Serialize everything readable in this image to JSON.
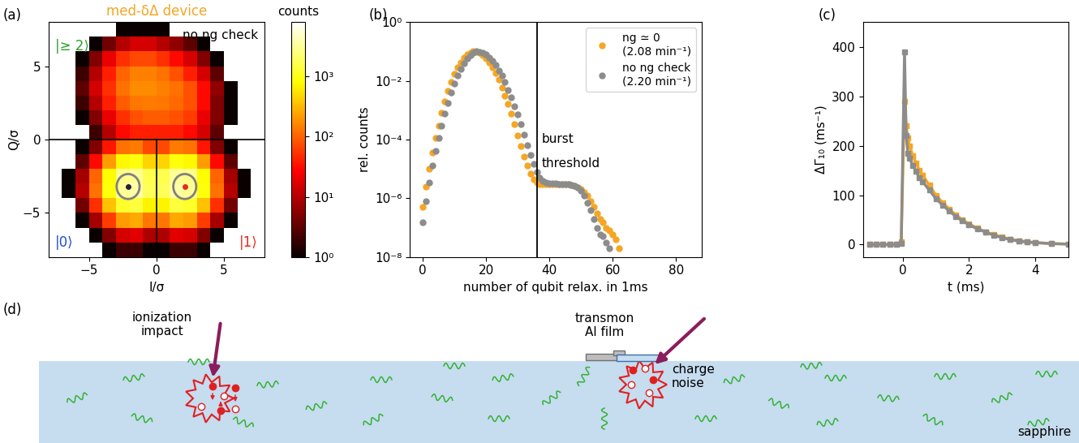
{
  "chart_data": [
    {
      "type": "heatmap",
      "panel_label": "(a)",
      "title": "med-δΔ device",
      "annotation": "no ng check",
      "x_label": "I/σ",
      "y_label": "Q/σ",
      "xlim": [
        -8,
        8
      ],
      "ylim": [
        -8,
        8
      ],
      "xticks": [
        {
          "value": -5,
          "label": "−5"
        },
        0,
        5
      ],
      "yticks": [
        {
          "value": -5,
          "label": "−5"
        },
        0,
        5
      ],
      "x_bins": [
        -8,
        -7,
        -6,
        -5,
        -4,
        -3,
        -2,
        -1,
        0,
        1,
        2,
        3,
        4,
        5,
        6,
        7,
        8
      ],
      "y_bins": [
        -8,
        -7,
        -6,
        -5,
        -4,
        -3,
        -2,
        -1,
        0,
        1,
        2,
        3,
        4,
        5,
        6,
        7,
        8
      ],
      "cells": [
        [
          0,
          0,
          0,
          0,
          1,
          2,
          2,
          1,
          1,
          2,
          2,
          1,
          0,
          0,
          0,
          0
        ],
        [
          0,
          0,
          0,
          1,
          5,
          15,
          18,
          9,
          9,
          18,
          15,
          5,
          1,
          0,
          0,
          0
        ],
        [
          0,
          0,
          1,
          8,
          60,
          210,
          250,
          130,
          130,
          250,
          210,
          60,
          8,
          1,
          0,
          0
        ],
        [
          0,
          0,
          4,
          50,
          360,
          1200,
          1400,
          700,
          700,
          1400,
          1200,
          360,
          50,
          4,
          0,
          0
        ],
        [
          0,
          1,
          10,
          120,
          900,
          3000,
          3500,
          1800,
          1800,
          3500,
          3000,
          900,
          120,
          10,
          1,
          0
        ],
        [
          0,
          1,
          8,
          100,
          800,
          2700,
          3100,
          1600,
          1600,
          3100,
          2700,
          800,
          100,
          8,
          1,
          0
        ],
        [
          0,
          0,
          3,
          30,
          220,
          750,
          880,
          450,
          450,
          880,
          750,
          220,
          30,
          3,
          0,
          0
        ],
        [
          0,
          0,
          1,
          5,
          35,
          120,
          140,
          70,
          70,
          140,
          120,
          35,
          5,
          1,
          0,
          0
        ],
        [
          0,
          0,
          0,
          2,
          10,
          30,
          40,
          40,
          40,
          40,
          30,
          15,
          3,
          0,
          0,
          0
        ],
        [
          0,
          0,
          1,
          5,
          20,
          50,
          80,
          90,
          90,
          80,
          60,
          20,
          5,
          1,
          0,
          0
        ],
        [
          0,
          0,
          2,
          10,
          40,
          90,
          130,
          140,
          130,
          110,
          80,
          30,
          5,
          1,
          0,
          0
        ],
        [
          0,
          0,
          3,
          15,
          50,
          120,
          170,
          170,
          150,
          120,
          80,
          30,
          6,
          1,
          0,
          0
        ],
        [
          0,
          0,
          2,
          10,
          40,
          100,
          150,
          150,
          120,
          80,
          40,
          15,
          3,
          0,
          0,
          0
        ],
        [
          0,
          0,
          1,
          5,
          20,
          50,
          70,
          70,
          50,
          30,
          15,
          5,
          1,
          0,
          0,
          0
        ],
        [
          0,
          0,
          0,
          1,
          4,
          10,
          15,
          15,
          10,
          6,
          3,
          1,
          0,
          0,
          0,
          0
        ],
        [
          0,
          0,
          0,
          0,
          0,
          1,
          1,
          1,
          1,
          0,
          0,
          0,
          0,
          0,
          0,
          0
        ]
      ],
      "colorbar": {
        "label": "counts",
        "log": true,
        "range": [
          1,
          8000
        ],
        "ticks": [
          {
            "value": 1,
            "label": "10⁰"
          },
          {
            "value": 10,
            "label": "10¹"
          },
          {
            "value": 100,
            "label": "10²"
          },
          {
            "value": 1000,
            "label": "10³"
          }
        ]
      },
      "thresholds": {
        "I": 0,
        "Q": 0
      },
      "state_labels": [
        {
          "text": "|≥ 2⟩",
          "color": "#2ca02c"
        },
        {
          "text": "|0⟩",
          "color": "#1f4fd1"
        },
        {
          "text": "|1⟩",
          "color": "#e8291c"
        }
      ],
      "state_centers": [
        {
          "x": -2.1,
          "y": -3.2,
          "color": "#202040"
        },
        {
          "x": 2.1,
          "y": -3.2,
          "color": "#e8291c"
        }
      ],
      "circle_radius": 0.85
    },
    {
      "type": "scatter",
      "panel_label": "(b)",
      "x_label": "number of qubit relax. in 1ms",
      "y_label": "rel. counts",
      "log": "y",
      "xlim": [
        -4,
        88
      ],
      "xticks": [
        0,
        20,
        40,
        60,
        80
      ],
      "ylim": [
        1e-08,
        1
      ],
      "yticks": [
        {
          "value": 1e-08,
          "label": "10⁻⁸"
        },
        {
          "value": 1e-06,
          "label": "10⁻⁶"
        },
        {
          "value": 0.0001,
          "label": "10⁻⁴"
        },
        {
          "value": 0.01,
          "label": "10⁻²"
        },
        {
          "value": 1,
          "label": "10⁰"
        }
      ],
      "legend": "upper right",
      "threshold": {
        "x": 36,
        "label": "burst\nthreshold"
      },
      "series": [
        {
          "name": "ng ≃ 0\n(2.08 min⁻¹)",
          "color": "#f5a623",
          "marker": "o",
          "x": [
            0,
            1,
            2,
            3,
            4,
            5,
            6,
            7,
            8,
            9,
            10,
            11,
            12,
            13,
            14,
            15,
            16,
            17,
            18,
            19,
            20,
            21,
            22,
            23,
            24,
            25,
            26,
            27,
            28,
            29,
            30,
            31,
            32,
            33,
            34,
            35,
            36,
            37,
            38,
            39,
            40,
            41,
            42,
            43,
            44,
            45,
            46,
            47,
            48,
            49,
            50,
            51,
            52,
            53,
            54,
            55,
            56,
            57,
            58,
            59,
            60,
            61,
            62
          ],
          "values": [
            5e-07,
            2.5e-06,
            1e-05,
            3.5e-05,
            0.00011,
            0.0003,
            0.0008,
            0.002,
            0.0045,
            0.009,
            0.017,
            0.028,
            0.043,
            0.06,
            0.078,
            0.09,
            0.1,
            0.098,
            0.09,
            0.075,
            0.058,
            0.042,
            0.028,
            0.018,
            0.011,
            0.006,
            0.0032,
            0.0016,
            0.00075,
            0.00033,
            0.00014,
            6e-05,
            2.6e-05,
            1.3e-05,
            7e-06,
            4.5e-06,
            3.5e-06,
            3e-06,
            3e-06,
            3e-06,
            3e-06,
            3e-06,
            3e-06,
            3e-06,
            3e-06,
            3e-06,
            3e-06,
            2.8e-06,
            2.6e-06,
            2.3e-06,
            2e-06,
            1.6e-06,
            1.2e-06,
            8e-07,
            5e-07,
            3e-07,
            2e-07,
            1.5e-07,
            1e-07,
            8e-08,
            6e-08,
            4e-08,
            2e-08
          ]
        },
        {
          "name": "no ng check\n(2.20 min⁻¹)",
          "color": "#8c8c8c",
          "marker": "o",
          "x": [
            0,
            1,
            2,
            3,
            4,
            5,
            6,
            7,
            8,
            9,
            10,
            11,
            12,
            13,
            14,
            15,
            16,
            17,
            18,
            19,
            20,
            21,
            22,
            23,
            24,
            25,
            26,
            27,
            28,
            29,
            30,
            31,
            32,
            33,
            34,
            35,
            36,
            37,
            38,
            39,
            40,
            41,
            42,
            43,
            44,
            45,
            46,
            47,
            48,
            49,
            50,
            51,
            52,
            53,
            54,
            55,
            56,
            57,
            58,
            59
          ],
          "values": [
            1.5e-07,
            8e-07,
            3.5e-06,
            1.3e-05,
            4e-05,
            0.00011,
            0.0003,
            0.00075,
            0.0018,
            0.004,
            0.008,
            0.015,
            0.025,
            0.04,
            0.058,
            0.075,
            0.09,
            0.1,
            0.098,
            0.09,
            0.078,
            0.063,
            0.048,
            0.034,
            0.023,
            0.015,
            0.009,
            0.005,
            0.0028,
            0.0014,
            0.0007,
            0.00033,
            0.00015,
            6.5e-05,
            3e-05,
            1.5e-05,
            8e-06,
            5e-06,
            4e-06,
            3.5e-06,
            3.3e-06,
            3.2e-06,
            3.2e-06,
            3.1e-06,
            3.1e-06,
            3e-06,
            3e-06,
            2.9e-06,
            2.7e-06,
            2.3e-06,
            1.8e-06,
            1.2e-06,
            7e-07,
            4e-07,
            2e-07,
            1e-07,
            6e-08,
            5e-08,
            3e-08,
            2e-08
          ]
        }
      ]
    },
    {
      "type": "scatter",
      "panel_label": "(c)",
      "x_label": "t (ms)",
      "y_label": "ΔΓ₁₀ (ms⁻¹)",
      "xlim": [
        -1.2,
        5
      ],
      "xticks": [
        0,
        2,
        4
      ],
      "ylim": [
        -25,
        450
      ],
      "yticks": [
        0,
        100,
        200,
        300,
        400
      ],
      "series": [
        {
          "color": "#f5a623",
          "marker": "s",
          "line_style": "solid",
          "x": [
            -1.0,
            -0.8,
            -0.6,
            -0.4,
            -0.2,
            -0.05,
            0.05,
            0.1,
            0.15,
            0.2,
            0.3,
            0.4,
            0.5,
            0.6,
            0.8,
            1.0,
            1.2,
            1.4,
            1.6,
            1.8,
            2.0,
            2.25,
            2.5,
            2.75,
            3.0,
            3.25,
            3.5,
            3.75,
            4.0,
            4.5,
            5.0
          ],
          "values": [
            0,
            0,
            0,
            0,
            0,
            5,
            290,
            240,
            215,
            200,
            180,
            165,
            150,
            140,
            120,
            100,
            85,
            72,
            60,
            50,
            42,
            33,
            26,
            20,
            15,
            11,
            8,
            6,
            4,
            2,
            1
          ]
        },
        {
          "color": "#8c8c8c",
          "marker": "s",
          "line_style": "solid",
          "x": [
            -1.0,
            -0.8,
            -0.6,
            -0.4,
            -0.2,
            -0.05,
            0.05,
            0.1,
            0.15,
            0.2,
            0.3,
            0.4,
            0.5,
            0.6,
            0.8,
            1.0,
            1.2,
            1.4,
            1.6,
            1.8,
            2.0,
            2.25,
            2.5,
            2.75,
            3.0,
            3.25,
            3.5,
            3.75,
            4.0,
            4.5,
            5.0
          ],
          "values": [
            0,
            0,
            0,
            0,
            0,
            3,
            390,
            220,
            185,
            175,
            160,
            148,
            135,
            127,
            110,
            93,
            80,
            68,
            57,
            48,
            40,
            32,
            25,
            19,
            14,
            10,
            7,
            5,
            4,
            2,
            1
          ]
        }
      ]
    }
  ],
  "diagram": {
    "panel_label": "(d)",
    "impact_label": "ionization\nimpact",
    "device_label": "transmon\nAl film",
    "noise_label": "charge\nnoise",
    "substrate_label": "sapphire"
  }
}
